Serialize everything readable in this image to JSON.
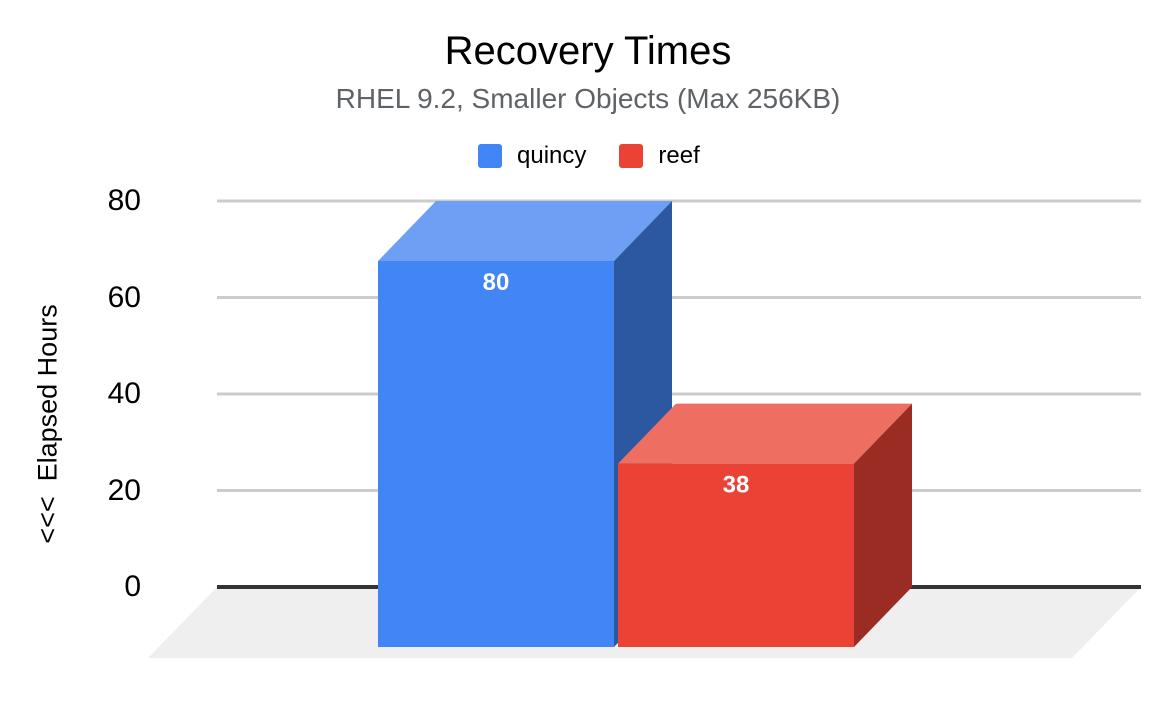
{
  "chart_data": {
    "type": "bar",
    "projection": "3d",
    "title": "Recovery Times",
    "subtitle": "RHEL 9.2, Smaller Objects (Max 256KB)",
    "ylabel": "<<<  Elapsed Hours",
    "xlabel": "",
    "ylim": [
      0,
      80
    ],
    "yticks": [
      0,
      20,
      40,
      60,
      80
    ],
    "grid": true,
    "legend_position": "top",
    "series": [
      {
        "name": "quincy",
        "value": 80,
        "color": "#4285f4",
        "color_top": "#6da0f5",
        "color_side": "#2c58a1"
      },
      {
        "name": "reef",
        "value": 38,
        "color": "#ea4335",
        "color_top": "#ee6e62",
        "color_side": "#9a2c23"
      }
    ],
    "bar_value_labels": [
      "80",
      "38"
    ],
    "colors": {
      "title": "#000000",
      "subtitle": "#5f6368",
      "axis_text": "#000000",
      "bar_label": "#ffffff",
      "gridline": "#cccccc",
      "baseline": "#333333",
      "floor": "#efefef",
      "background": "#ffffff"
    }
  }
}
